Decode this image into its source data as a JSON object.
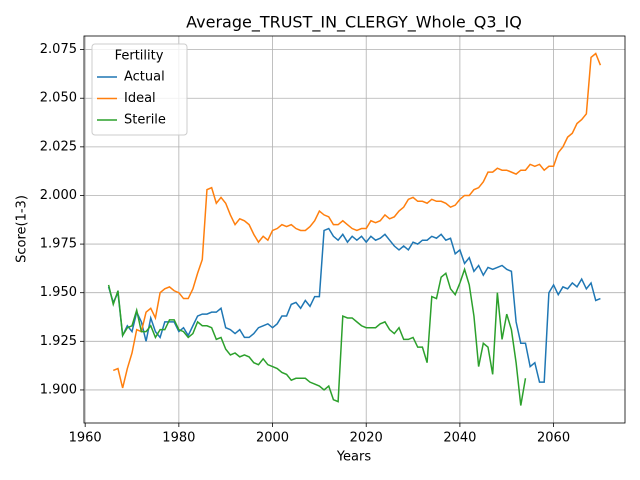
{
  "chart_data": {
    "type": "line",
    "title": "Average_TRUST_IN_CLERGY_Whole_Q3_IQ",
    "x_label": "Years",
    "y_label": "Score(1-3)",
    "legend_title": "Fertility",
    "legend_position": "upper left",
    "grid": true,
    "x": [
      1965,
      1966,
      1967,
      1968,
      1969,
      1970,
      1971,
      1972,
      1973,
      1974,
      1975,
      1976,
      1977,
      1978,
      1979,
      1980,
      1981,
      1982,
      1983,
      1984,
      1985,
      1986,
      1987,
      1988,
      1989,
      1990,
      1991,
      1992,
      1993,
      1994,
      1995,
      1996,
      1997,
      1998,
      1999,
      2000,
      2001,
      2002,
      2003,
      2004,
      2005,
      2006,
      2007,
      2008,
      2009,
      2010,
      2011,
      2012,
      2013,
      2014,
      2015,
      2016,
      2017,
      2018,
      2019,
      2020,
      2021,
      2022,
      2023,
      2024,
      2025,
      2026,
      2027,
      2028,
      2029,
      2030,
      2031,
      2032,
      2033,
      2034,
      2035,
      2036,
      2037,
      2038,
      2039,
      2040,
      2041,
      2042,
      2043,
      2044,
      2045,
      2046,
      2047,
      2048,
      2049,
      2050,
      2051,
      2052,
      2053,
      2054,
      2055,
      2056,
      2057,
      2058,
      2059,
      2060,
      2061,
      2062,
      2063,
      2064,
      2065,
      2066,
      2067,
      2068,
      2069,
      2070
    ],
    "series": [
      {
        "name": "Actual",
        "color": "#1f77b4",
        "values": [
          1.953,
          1.945,
          1.95,
          1.928,
          1.933,
          1.93,
          1.94,
          1.935,
          1.925,
          1.937,
          1.93,
          1.927,
          1.935,
          1.935,
          1.935,
          1.93,
          1.932,
          1.928,
          1.933,
          1.938,
          1.939,
          1.939,
          1.94,
          1.94,
          1.942,
          1.932,
          1.931,
          1.929,
          1.931,
          1.927,
          1.927,
          1.929,
          1.932,
          1.933,
          1.934,
          1.932,
          1.934,
          1.938,
          1.938,
          1.944,
          1.945,
          1.942,
          1.946,
          1.943,
          1.948,
          1.948,
          1.982,
          1.983,
          1.979,
          1.977,
          1.98,
          1.976,
          1.979,
          1.977,
          1.979,
          1.976,
          1.979,
          1.977,
          1.978,
          1.98,
          1.977,
          1.974,
          1.972,
          1.974,
          1.972,
          1.976,
          1.975,
          1.977,
          1.977,
          1.979,
          1.978,
          1.98,
          1.977,
          1.978,
          1.97,
          1.972,
          1.965,
          1.968,
          1.961,
          1.964,
          1.959,
          1.963,
          1.962,
          1.963,
          1.964,
          1.962,
          1.961,
          1.935,
          1.924,
          1.924,
          1.912,
          1.914,
          1.904,
          1.904,
          1.95,
          1.954,
          1.949,
          1.953,
          1.952,
          1.955,
          1.953,
          1.957,
          1.952,
          1.955,
          1.946,
          1.947
        ]
      },
      {
        "name": "Ideal",
        "color": "#ff7f0e",
        "values": [
          null,
          1.91,
          1.911,
          1.901,
          1.911,
          1.919,
          1.931,
          1.93,
          1.94,
          1.942,
          1.937,
          1.95,
          1.952,
          1.953,
          1.951,
          1.95,
          1.947,
          1.947,
          1.952,
          1.96,
          1.967,
          2.003,
          2.004,
          1.996,
          1.999,
          1.996,
          1.99,
          1.985,
          1.988,
          1.987,
          1.985,
          1.98,
          1.976,
          1.979,
          1.977,
          1.982,
          1.983,
          1.985,
          1.984,
          1.985,
          1.983,
          1.982,
          1.982,
          1.984,
          1.987,
          1.992,
          1.99,
          1.989,
          1.985,
          1.985,
          1.987,
          1.985,
          1.983,
          1.982,
          1.983,
          1.983,
          1.987,
          1.986,
          1.987,
          1.99,
          1.988,
          1.989,
          1.992,
          1.994,
          1.998,
          1.999,
          1.997,
          1.997,
          1.996,
          1.998,
          1.997,
          1.997,
          1.996,
          1.994,
          1.995,
          1.998,
          2.0,
          2.0,
          2.003,
          2.004,
          2.007,
          2.012,
          2.012,
          2.014,
          2.013,
          2.013,
          2.012,
          2.011,
          2.013,
          2.013,
          2.016,
          2.015,
          2.016,
          2.013,
          2.015,
          2.015,
          2.022,
          2.025,
          2.03,
          2.032,
          2.037,
          2.039,
          2.042,
          2.071,
          2.073,
          2.067
        ]
      },
      {
        "name": "Sterile",
        "color": "#2ca02c",
        "values": [
          1.954,
          1.944,
          1.951,
          1.928,
          1.932,
          1.933,
          1.941,
          1.93,
          1.93,
          1.933,
          1.927,
          1.931,
          1.931,
          1.936,
          1.936,
          1.931,
          1.93,
          1.927,
          1.929,
          1.935,
          1.933,
          1.933,
          1.932,
          1.926,
          1.927,
          1.921,
          1.918,
          1.919,
          1.917,
          1.918,
          1.917,
          1.914,
          1.913,
          1.916,
          1.913,
          1.912,
          1.911,
          1.909,
          1.908,
          1.905,
          1.906,
          1.906,
          1.906,
          1.904,
          1.903,
          1.902,
          1.9,
          1.902,
          1.895,
          1.894,
          1.938,
          1.937,
          1.937,
          1.935,
          1.933,
          1.932,
          1.932,
          1.932,
          1.934,
          1.935,
          1.931,
          1.929,
          1.932,
          1.926,
          1.926,
          1.927,
          1.922,
          1.922,
          1.914,
          1.948,
          1.947,
          1.958,
          1.96,
          1.952,
          1.949,
          1.955,
          1.962,
          1.954,
          1.938,
          1.912,
          1.924,
          1.922,
          1.908,
          1.95,
          1.926,
          1.939,
          1.931,
          1.914,
          1.892,
          1.906,
          null,
          null,
          null,
          null,
          null,
          null,
          null,
          null,
          null,
          null,
          null,
          null,
          null,
          null,
          null,
          null
        ]
      }
    ],
    "xlim": [
      1959.75,
      2075.25
    ],
    "xticks": [
      1960,
      1980,
      2000,
      2020,
      2040,
      2060
    ],
    "ylim": [
      1.883,
      2.082
    ],
    "yticks": [
      {
        "value": 1.9,
        "label": "1.900"
      },
      {
        "value": 1.925,
        "label": "1.925"
      },
      {
        "value": 1.95,
        "label": "1.950"
      },
      {
        "value": 1.975,
        "label": "1.975"
      },
      {
        "value": 2.0,
        "label": "2.000"
      },
      {
        "value": 2.025,
        "label": "2.025"
      },
      {
        "value": 2.05,
        "label": "2.050"
      },
      {
        "value": 2.075,
        "label": "2.075"
      }
    ]
  }
}
